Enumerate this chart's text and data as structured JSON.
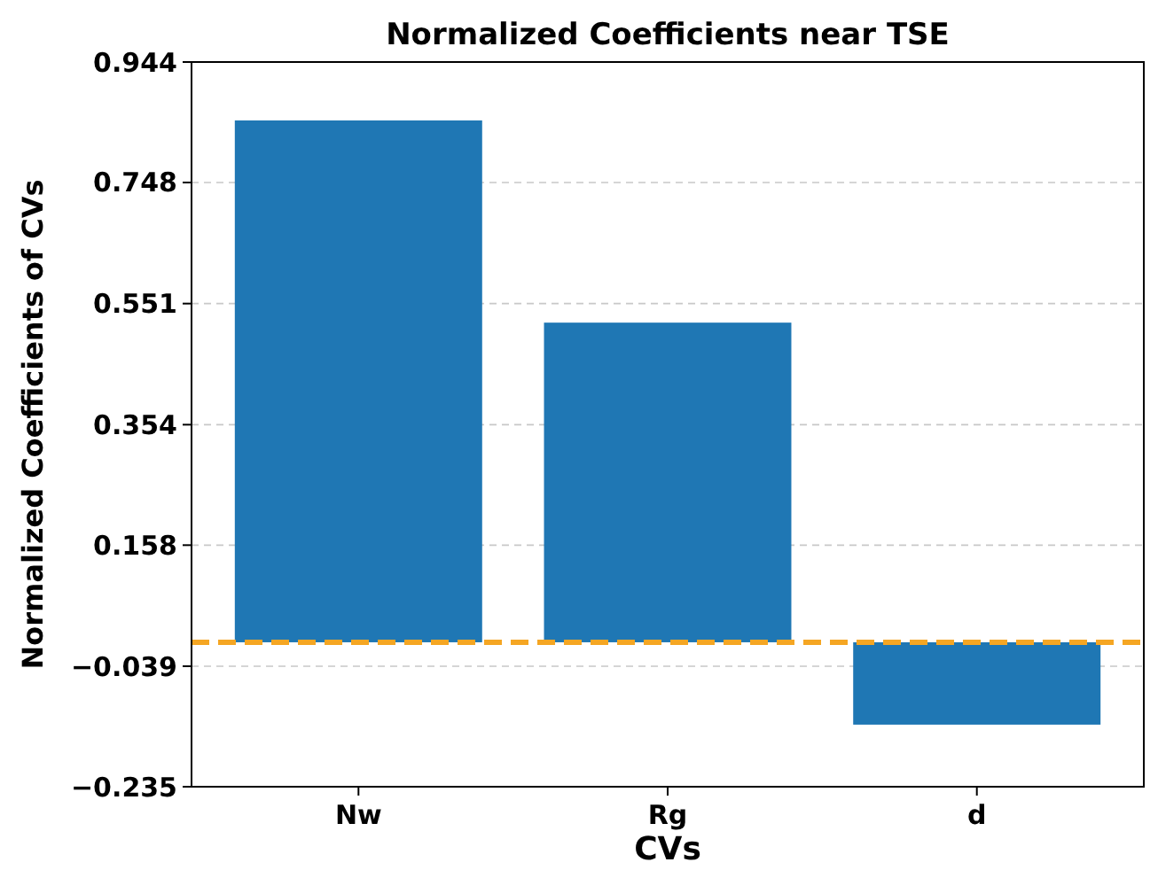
{
  "chart_data": {
    "type": "bar",
    "title": "Normalized Coefficients near TSE",
    "xlabel": "CVs",
    "ylabel": "Normalized Coefficients of CVs",
    "categories": [
      "Nw",
      "Rg",
      "d"
    ],
    "values": [
      0.849,
      0.52,
      -0.134
    ],
    "color": "#1f77b4",
    "ylim": [
      -0.235,
      0.944
    ],
    "yticks": [
      {
        "value": -0.235,
        "label": "−0.235"
      },
      {
        "value": -0.039,
        "label": "−0.039"
      },
      0.158,
      0.354,
      0.551,
      0.748,
      0.944
    ],
    "grid": "y",
    "ref_lines": [
      {
        "axis": "y",
        "value": 0,
        "color": "#f5a623",
        "line_style": "dashed"
      }
    ]
  }
}
